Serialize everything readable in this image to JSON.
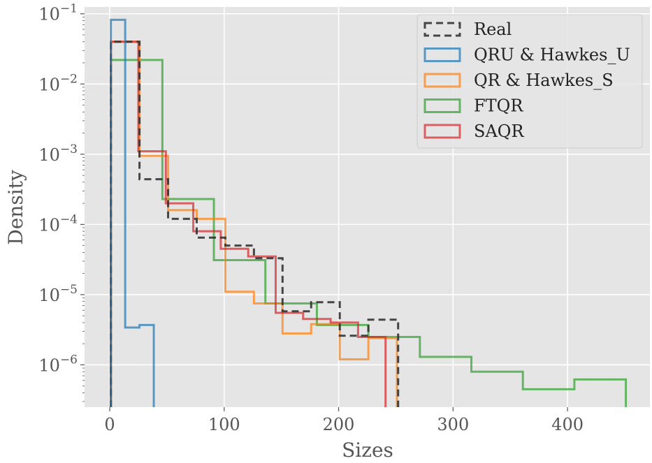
{
  "chart_data": {
    "type": "histogram-step",
    "title": "",
    "xlabel": "Sizes",
    "ylabel": "Density",
    "xlim": [
      -22,
      472
    ],
    "ylim": [
      2.5e-07,
      0.125
    ],
    "yscale": "log",
    "grid": true,
    "legend_position": "top-right",
    "x_ticks": [
      {
        "value": 0,
        "label": "0"
      },
      {
        "value": 100,
        "label": "100"
      },
      {
        "value": 200,
        "label": "200"
      },
      {
        "value": 300,
        "label": "300"
      },
      {
        "value": 400,
        "label": "400"
      }
    ],
    "y_ticks": [
      {
        "value": 1e-06,
        "base": "10",
        "exp": "−6"
      },
      {
        "value": 1e-05,
        "base": "10",
        "exp": "−5"
      },
      {
        "value": 0.0001,
        "base": "10",
        "exp": "−4"
      },
      {
        "value": 0.001,
        "base": "10",
        "exp": "−3"
      },
      {
        "value": 0.01,
        "base": "10",
        "exp": "−2"
      },
      {
        "value": 0.1,
        "base": "10",
        "exp": "−1"
      }
    ],
    "series": [
      {
        "name": "FTQR",
        "color": "#2ca02c",
        "dashed": false,
        "edges": [
          1,
          46,
          91,
          136,
          181,
          226,
          271,
          316,
          361,
          406,
          451
        ],
        "values": [
          0.022,
          0.00023,
          3.1e-05,
          7.5e-06,
          3.7e-06,
          2.5e-06,
          1.3e-06,
          8e-07,
          4.5e-07,
          6.2e-07
        ]
      },
      {
        "name": "QR & Hawkes_S",
        "color": "#ff7f0e",
        "dashed": false,
        "edges": [
          1,
          26,
          51,
          76,
          101,
          126,
          151,
          176,
          201,
          226,
          251
        ],
        "values": [
          0.04,
          0.00095,
          0.00016,
          0.00012,
          1.1e-05,
          7.5e-06,
          2.8e-06,
          3.8e-06,
          1.2e-06,
          2.4e-06
        ]
      },
      {
        "name": "SAQR",
        "color": "#d62728",
        "dashed": false,
        "edges": [
          1,
          25,
          49,
          73,
          97,
          121,
          145,
          169,
          193,
          217,
          241
        ],
        "values": [
          0.04,
          0.0011,
          0.0002,
          8e-05,
          4.5e-05,
          3.5e-05,
          5.5e-06,
          4.5e-06,
          4e-06,
          2.5e-06
        ]
      },
      {
        "name": "Real",
        "color": "#333333",
        "dashed": true,
        "edges": [
          1,
          26,
          51,
          76,
          101,
          126,
          151,
          176,
          201,
          226,
          252
        ],
        "values": [
          0.04,
          0.00044,
          0.00012,
          6.5e-05,
          5e-05,
          3.3e-05,
          5.8e-06,
          7.8e-06,
          2.6e-06,
          4.4e-06
        ]
      },
      {
        "name": "QRU & Hawkes_U",
        "color": "#1f77b4",
        "dashed": false,
        "edges": [
          1,
          13.5,
          26,
          38.5
        ],
        "values": [
          0.082,
          3.4e-06,
          3.7e-06
        ]
      }
    ],
    "legend_order": [
      "Real",
      "QRU & Hawkes_U",
      "QR & Hawkes_S",
      "FTQR",
      "SAQR"
    ]
  }
}
